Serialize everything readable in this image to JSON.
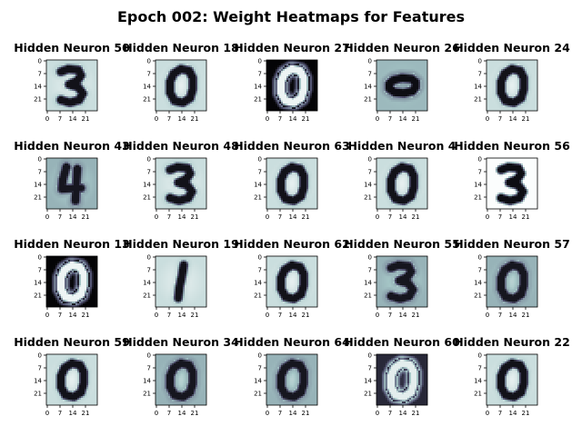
{
  "chart_data": {
    "type": "heatmap",
    "title": "Epoch 002: Weight Heatmaps for Features",
    "layout": {
      "rows": 4,
      "cols": 5
    },
    "axis_ticks": {
      "x": [
        "0",
        "7",
        "14",
        "21"
      ],
      "y": [
        "0",
        "7",
        "14",
        "21"
      ]
    },
    "image_size": 28,
    "colormap": "bone",
    "panels": [
      {
        "title": "Hidden Neuron 50",
        "digit": "3",
        "style": "light"
      },
      {
        "title": "Hidden Neuron 18",
        "digit": "0",
        "style": "light"
      },
      {
        "title": "Hidden Neuron 27",
        "digit": "0",
        "style": "dark"
      },
      {
        "title": "Hidden Neuron 26",
        "digit": "0",
        "style": "flat"
      },
      {
        "title": "Hidden Neuron 24",
        "digit": "0",
        "style": "light"
      },
      {
        "title": "Hidden Neuron 43",
        "digit": "4",
        "style": "mid"
      },
      {
        "title": "Hidden Neuron 48",
        "digit": "3",
        "style": "light"
      },
      {
        "title": "Hidden Neuron 63",
        "digit": "0",
        "style": "light"
      },
      {
        "title": "Hidden Neuron 4",
        "digit": "0",
        "style": "light"
      },
      {
        "title": "Hidden Neuron 56",
        "digit": "3",
        "style": "white"
      },
      {
        "title": "Hidden Neuron 13",
        "digit": "0",
        "style": "dark"
      },
      {
        "title": "Hidden Neuron 19",
        "digit": "1",
        "style": "light"
      },
      {
        "title": "Hidden Neuron 62",
        "digit": "0",
        "style": "light"
      },
      {
        "title": "Hidden Neuron 55",
        "digit": "3",
        "style": "mid"
      },
      {
        "title": "Hidden Neuron 57",
        "digit": "0",
        "style": "mid"
      },
      {
        "title": "Hidden Neuron 59",
        "digit": "0",
        "style": "light"
      },
      {
        "title": "Hidden Neuron 34",
        "digit": "0",
        "style": "mid"
      },
      {
        "title": "Hidden Neuron 64",
        "digit": "0",
        "style": "mid"
      },
      {
        "title": "Hidden Neuron 60",
        "digit": "0",
        "style": "darkmid"
      },
      {
        "title": "Hidden Neuron 22",
        "digit": "0",
        "style": "light"
      }
    ]
  }
}
